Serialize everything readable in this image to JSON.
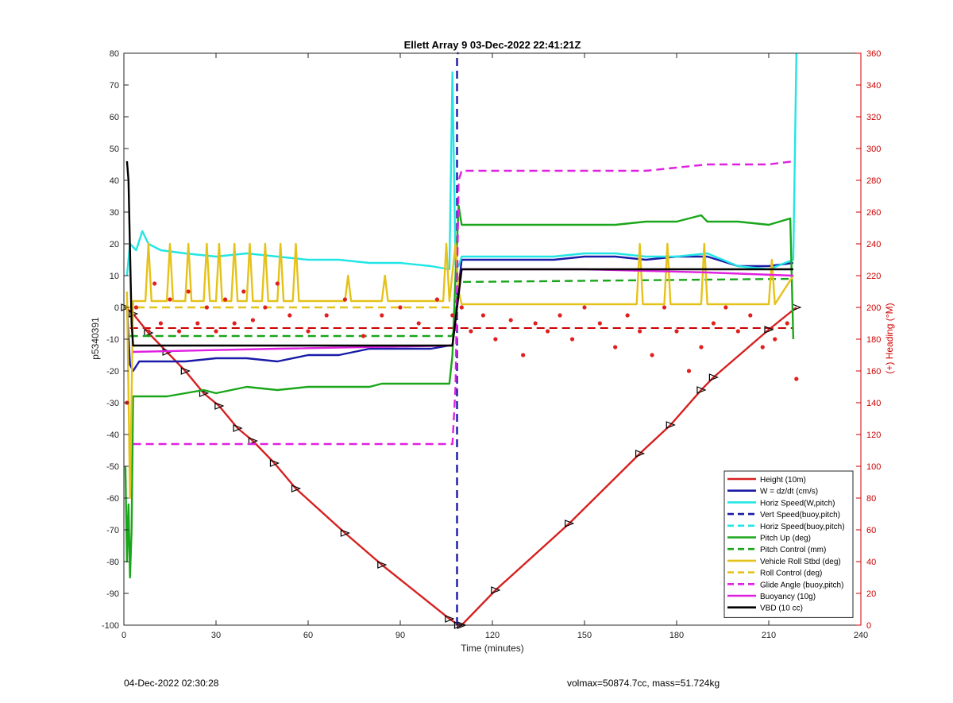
{
  "chart_data": {
    "type": "line",
    "title": "Ellett Array 9 03-Dec-2022 22:41:21Z",
    "xlabel": "Time (minutes)",
    "ylabel": "p5340391",
    "y2label": "(+) Heading (°M)",
    "xlim": [
      0,
      240
    ],
    "ylim": [
      -100,
      80
    ],
    "y2lim": [
      0,
      360
    ],
    "xticks": [
      "0",
      "30",
      "60",
      "90",
      "120",
      "150",
      "180",
      "210",
      "240"
    ],
    "yticks": [
      "80",
      "70",
      "60",
      "50",
      "40",
      "30",
      "20",
      "10",
      "0",
      "-10",
      "-20",
      "-30",
      "-40",
      "-50",
      "-60",
      "-70",
      "-80",
      "-90",
      "-100"
    ],
    "y2ticks": [
      "360",
      "340",
      "320",
      "300",
      "280",
      "260",
      "240",
      "220",
      "200",
      "180",
      "160",
      "140",
      "120",
      "100",
      "80",
      "60",
      "40",
      "20",
      "0"
    ],
    "grid": false,
    "legend_position": "bottom-right",
    "colors": {
      "height": "#d62020",
      "w": "#1a1aa8",
      "horiz": "#22e5e5",
      "pitch": "#1aa61a",
      "roll": "#e5c21a",
      "glide": "#e020e0",
      "vbd": "#000000",
      "heading": "#e02020"
    },
    "series": [
      {
        "name": "Height (10m)",
        "color": "#d62020",
        "style": "solid",
        "x": [
          0.5,
          3,
          8,
          14,
          20,
          26,
          31,
          37,
          42,
          49,
          56,
          72,
          84,
          106,
          109,
          110,
          121,
          145,
          168,
          178,
          188,
          192,
          210,
          219
        ],
        "y": [
          0,
          -2,
          -8,
          -14,
          -20,
          -27,
          -31,
          -38,
          -42,
          -49,
          -57,
          -71,
          -81,
          -98,
          -100,
          -100,
          -89,
          -68,
          -46,
          -37,
          -26,
          -22,
          -7,
          0
        ]
      },
      {
        "name": "W = dz/dt (cm/s)",
        "color": "#1a1aa8",
        "style": "solid",
        "x": [
          1,
          2,
          3,
          5,
          10,
          20,
          30,
          40,
          50,
          60,
          70,
          80,
          90,
          100,
          106,
          107,
          110,
          120,
          140,
          150,
          160,
          170,
          180,
          190,
          200,
          210,
          218
        ],
        "y": [
          0,
          -18,
          -20,
          -17,
          -17,
          -17,
          -16,
          -16,
          -17,
          -15,
          -15,
          -13,
          -13,
          -13,
          -12,
          -12,
          15,
          15,
          15,
          16,
          16,
          15,
          16,
          16,
          13,
          13,
          14
        ]
      },
      {
        "name": "Horiz Speed(W,pitch)",
        "color": "#22e5e5",
        "style": "solid",
        "x": [
          1,
          2,
          4,
          6,
          8,
          12,
          20,
          30,
          40,
          50,
          60,
          70,
          80,
          90,
          100,
          106,
          107,
          108,
          109,
          110,
          120,
          140,
          150,
          160,
          170,
          180,
          190,
          200,
          210,
          218,
          219
        ],
        "y": [
          10,
          20,
          18,
          24,
          20,
          18,
          17,
          16,
          17,
          16,
          15,
          15,
          14,
          14,
          13,
          12,
          74,
          13,
          13,
          16,
          16,
          16,
          17,
          17,
          16,
          16,
          17,
          13,
          12,
          15,
          80
        ]
      },
      {
        "name": "Vert Speed(buoy,pitch)",
        "color": "#1a1aa8",
        "style": "dashed",
        "x": [
          108.5,
          108.5,
          109
        ],
        "y": [
          -100,
          80,
          80
        ]
      },
      {
        "name": "Horiz Speed(buoy,pitch)",
        "color": "#22e5e5",
        "style": "dashed",
        "x": [],
        "y": []
      },
      {
        "name": "Pitch Up (deg)",
        "color": "#1aa61a",
        "style": "solid",
        "x": [
          0.5,
          1,
          1.5,
          2,
          2.5,
          3,
          6,
          14,
          20,
          26,
          30,
          40,
          50,
          60,
          70,
          80,
          84,
          90,
          100,
          106,
          107,
          108,
          109,
          110,
          120,
          140,
          150,
          160,
          170,
          180,
          188,
          190,
          200,
          210,
          217,
          218
        ],
        "y": [
          -50,
          -80,
          -62,
          -85,
          -70,
          -28,
          -28,
          -28,
          -27,
          -26,
          -27,
          -25,
          -26,
          -25,
          -25,
          -25,
          -24,
          -24,
          -24,
          -24,
          -15,
          10,
          32,
          26,
          26,
          26,
          26,
          26,
          27,
          27,
          29,
          27,
          27,
          26,
          28,
          -10
        ]
      },
      {
        "name": "Pitch Control (mm)",
        "color": "#1aa61a",
        "style": "dashed",
        "x": [
          2,
          107,
          109,
          218
        ],
        "y": [
          -9,
          -9,
          8,
          9
        ]
      },
      {
        "name": "Vehicle Roll Stbd (deg)",
        "color": "#e5c21a",
        "style": "solid",
        "x": [
          1,
          2,
          3,
          7,
          8,
          9,
          14,
          15,
          16,
          20,
          21,
          22,
          26,
          27,
          28,
          30,
          31,
          32,
          35,
          36,
          37,
          40,
          41,
          42,
          45,
          46,
          47,
          50,
          51,
          52,
          55,
          56,
          57,
          72,
          73,
          74,
          84,
          85,
          86,
          104,
          105,
          106,
          108,
          109,
          110,
          167,
          168,
          169,
          176,
          177,
          178,
          188,
          189,
          190,
          210,
          211,
          212,
          218
        ],
        "y": [
          5,
          -60,
          2,
          2,
          20,
          2,
          2,
          20,
          2,
          2,
          20,
          2,
          2,
          20,
          2,
          2,
          20,
          2,
          2,
          20,
          2,
          2,
          20,
          2,
          2,
          20,
          2,
          2,
          20,
          2,
          2,
          20,
          2,
          2,
          10,
          2,
          2,
          10,
          2,
          2,
          20,
          2,
          20,
          5,
          1,
          1,
          20,
          1,
          1,
          20,
          1,
          1,
          20,
          1,
          1,
          15,
          1,
          10
        ]
      },
      {
        "name": "Roll Control (deg)",
        "color": "#e5c21a",
        "style": "dashed",
        "x": [
          0,
          107
        ],
        "y": [
          0,
          0
        ]
      },
      {
        "name": "Glide Angle (buoy,pitch)",
        "color": "#e020e0",
        "style": "dashed",
        "x": [
          3,
          10,
          20,
          30,
          40,
          50,
          60,
          70,
          80,
          90,
          100,
          107,
          108,
          109,
          110,
          120,
          140,
          150,
          160,
          170,
          180,
          190,
          200,
          210,
          218
        ],
        "y": [
          -43,
          -43,
          -43,
          -43,
          -43,
          -43,
          -43,
          -43,
          -43,
          -43,
          -43,
          -43,
          -25,
          40,
          43,
          43,
          43,
          43,
          43,
          43,
          44,
          45,
          45,
          45,
          46
        ]
      },
      {
        "name": "Buoyancy (10g)",
        "color": "#e020e0",
        "style": "solid",
        "x": [
          3,
          50,
          107,
          110,
          150,
          190,
          218
        ],
        "y": [
          -14,
          -13,
          -12,
          12,
          12,
          11,
          10
        ]
      },
      {
        "name": "VBD (10 cc)",
        "color": "#000000",
        "style": "solid",
        "x": [
          1,
          1.5,
          2.5,
          3,
          107,
          110,
          218
        ],
        "y": [
          46,
          40,
          -5,
          -12,
          -12,
          12,
          12
        ]
      },
      {
        "name": "(+) Heading (°M)",
        "color": "#e02020",
        "style": "dots",
        "axis": "right",
        "x": [
          1,
          4,
          8,
          10,
          12,
          15,
          18,
          21,
          24,
          27,
          30,
          33,
          36,
          39,
          42,
          46,
          50,
          54,
          60,
          66,
          72,
          78,
          84,
          90,
          96,
          102,
          107,
          110,
          113,
          117,
          121,
          126,
          130,
          134,
          138,
          142,
          146,
          150,
          155,
          160,
          164,
          168,
          172,
          176,
          180,
          184,
          188,
          192,
          196,
          200,
          204,
          208,
          212,
          216,
          219
        ],
        "y": [
          140,
          200,
          185,
          215,
          190,
          205,
          185,
          210,
          190,
          200,
          185,
          205,
          190,
          210,
          192,
          200,
          215,
          195,
          185,
          195,
          205,
          182,
          195,
          200,
          190,
          205,
          195,
          200,
          185,
          195,
          180,
          192,
          170,
          190,
          185,
          195,
          180,
          200,
          190,
          175,
          195,
          185,
          170,
          200,
          185,
          160,
          175,
          190,
          200,
          185,
          195,
          175,
          180,
          190,
          155
        ]
      }
    ],
    "heading_mean_line": {
      "value": 187,
      "x": [
        2,
        218
      ],
      "color": "#cc0000",
      "style": "dashed"
    }
  },
  "footer": {
    "left": "04-Dec-2022 02:30:28",
    "right": "volmax=50874.7cc, mass=51.724kg"
  }
}
